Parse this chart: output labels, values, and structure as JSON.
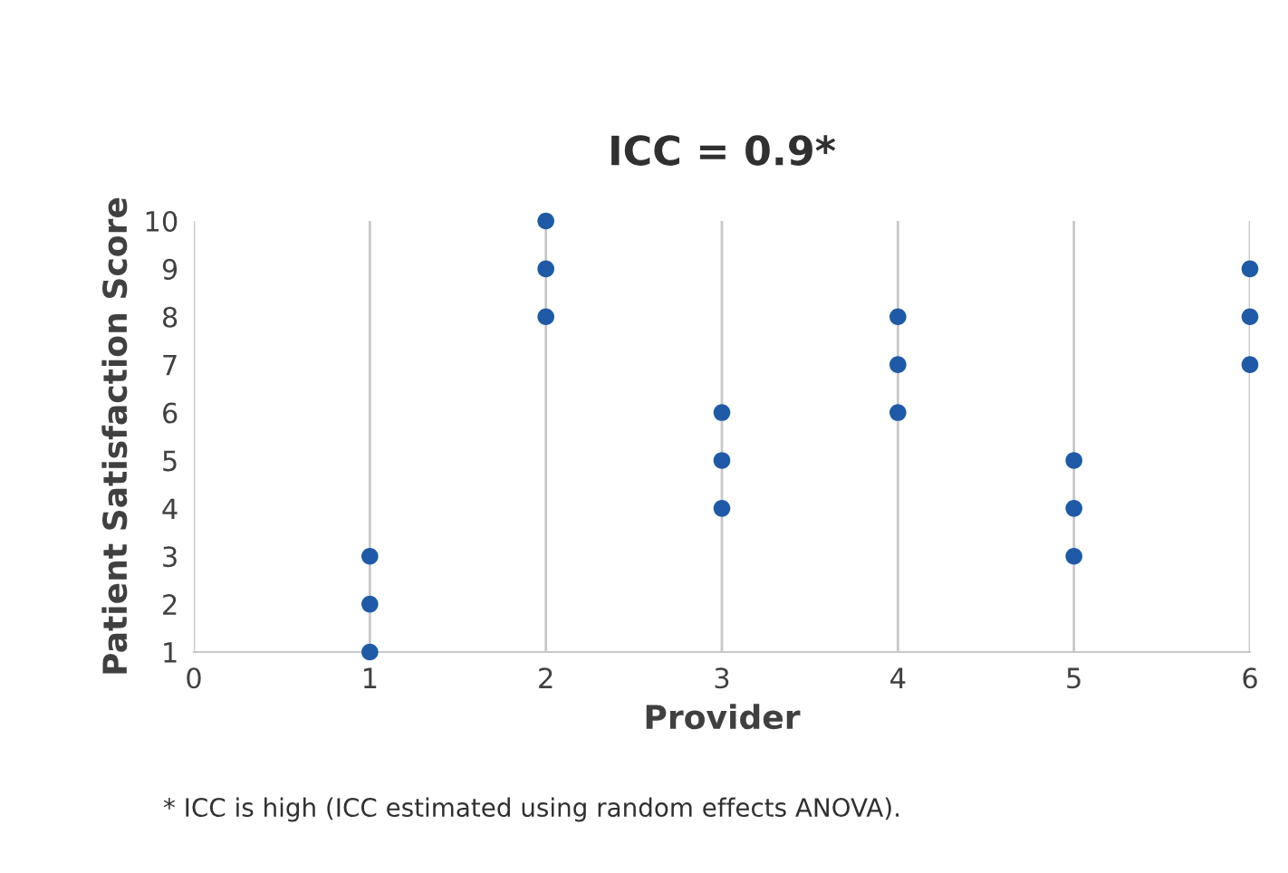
{
  "chart_data": {
    "type": "scatter",
    "title": "ICC = 0.9*",
    "xlabel": "Provider",
    "ylabel": "Patient Satisfaction Score",
    "x": [
      1,
      1,
      1,
      2,
      2,
      2,
      3,
      3,
      3,
      4,
      4,
      4,
      5,
      5,
      5,
      6,
      6,
      6
    ],
    "values": [
      1,
      2,
      3,
      8,
      9,
      10,
      4,
      5,
      6,
      6,
      7,
      8,
      3,
      4,
      5,
      7,
      8,
      9
    ],
    "color": "#1f5aa6",
    "marker": "circle",
    "xlim": [
      0,
      6
    ],
    "xticks": [
      0,
      1,
      2,
      3,
      4,
      5,
      6
    ],
    "ylim": [
      1,
      10
    ],
    "yticks": [
      1,
      2,
      3,
      4,
      5,
      6,
      7,
      8,
      9,
      10
    ],
    "grid": "x",
    "legend": false,
    "annotations": [
      "* ICC is high (ICC estimated using random effects ANOVA)."
    ]
  }
}
